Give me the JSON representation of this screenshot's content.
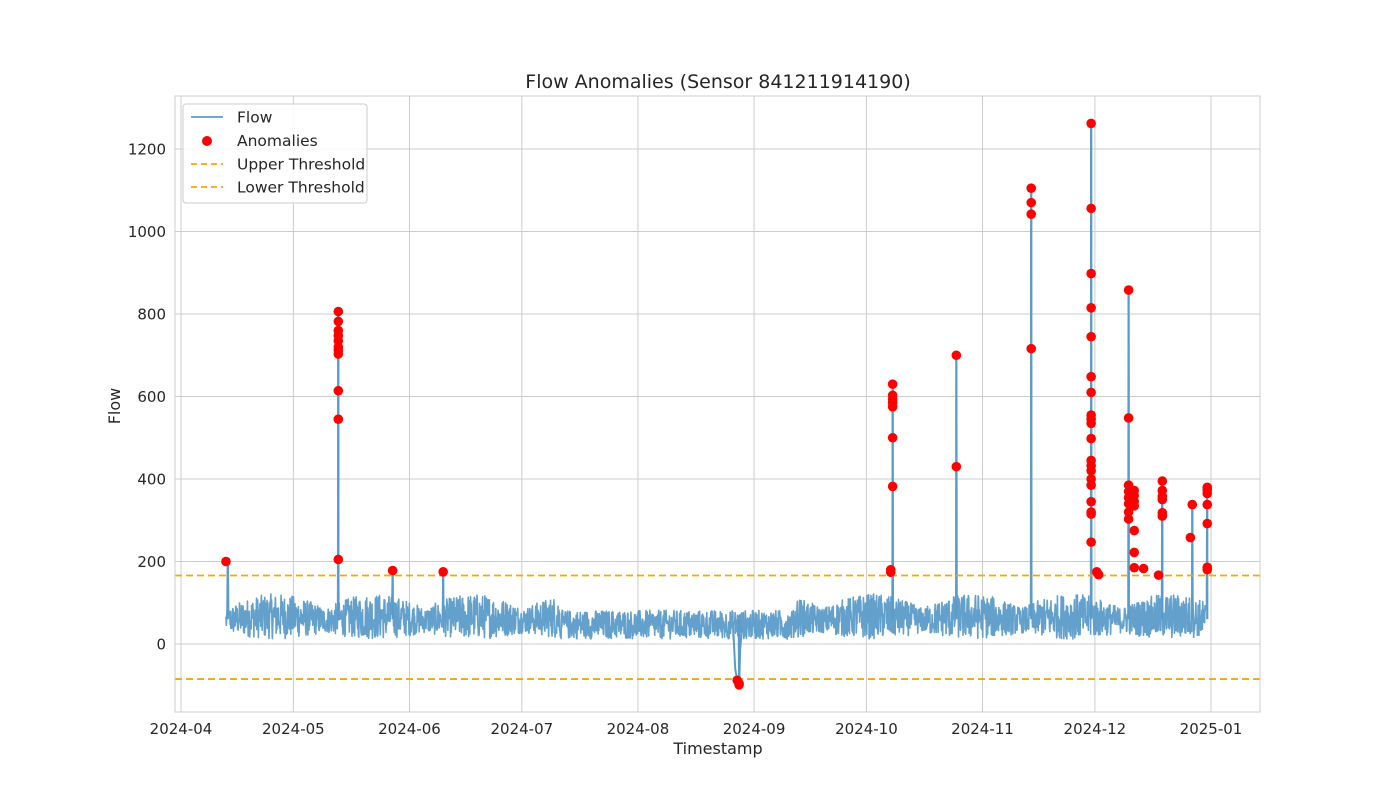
{
  "chart_data": {
    "type": "line",
    "title": "Flow Anomalies (Sensor 841211914190)",
    "xlabel": "Timestamp",
    "ylabel": "Flow",
    "x_range": [
      "2024-04-09T00:00",
      "2025-01-13T00:00"
    ],
    "ylim": [
      -165,
      1320
    ],
    "x_ticks": [
      "2024-04",
      "2024-05",
      "2024-06",
      "2024-07",
      "2024-08",
      "2024-09",
      "2024-10",
      "2024-11",
      "2024-12",
      "2025-01"
    ],
    "x_tick_dates": [
      "2024-04-01",
      "2024-05-01",
      "2024-06-01",
      "2024-07-01",
      "2024-08-01",
      "2024-09-01",
      "2024-10-01",
      "2024-11-01",
      "2024-12-01",
      "2025-01-01"
    ],
    "y_ticks": [
      0,
      200,
      400,
      600,
      800,
      1000,
      1200
    ],
    "grid": true,
    "legend_position": "top-left",
    "legend": [
      "Flow",
      "Anomalies",
      "Upper Threshold",
      "Lower Threshold"
    ],
    "colors": {
      "flow": "#5b9bc9",
      "anomaly": "#ff0000",
      "threshold": "#ffa500",
      "grid": "#cccccc",
      "frame": "#cccccc"
    },
    "series": [
      {
        "name": "Flow",
        "kind": "line",
        "approx_baseline": {
          "start": "2024-04-13",
          "end": "2024-12-31",
          "typical_range": [
            5,
            140
          ]
        },
        "spikes": [
          {
            "x": "2024-04-13T12:00",
            "y": 200
          },
          {
            "x": "2024-05-13T00:00",
            "y": 806
          },
          {
            "x": "2024-05-27T12:00",
            "y": 178
          },
          {
            "x": "2024-06-10T00:00",
            "y": 175
          },
          {
            "x": "2024-08-28T00:00",
            "y": -98
          },
          {
            "x": "2024-10-08T00:00",
            "y": 630
          },
          {
            "x": "2024-10-25T00:00",
            "y": 700
          },
          {
            "x": "2024-11-14T00:00",
            "y": 1105
          },
          {
            "x": "2024-11-30T00:00",
            "y": 1262
          },
          {
            "x": "2024-12-10T00:00",
            "y": 858
          },
          {
            "x": "2024-12-19T00:00",
            "y": 395
          },
          {
            "x": "2024-12-27T00:00",
            "y": 338
          },
          {
            "x": "2024-12-31T00:00",
            "y": 378
          }
        ]
      },
      {
        "name": "Anomalies",
        "kind": "scatter",
        "points": [
          {
            "x": "2024-04-13T00:00",
            "y": 200
          },
          {
            "x": "2024-05-13T00:00",
            "y": 806
          },
          {
            "x": "2024-05-13T00:00",
            "y": 782
          },
          {
            "x": "2024-05-13T00:00",
            "y": 760
          },
          {
            "x": "2024-05-13T00:00",
            "y": 748
          },
          {
            "x": "2024-05-13T00:00",
            "y": 735
          },
          {
            "x": "2024-05-13T00:00",
            "y": 720
          },
          {
            "x": "2024-05-13T00:00",
            "y": 712
          },
          {
            "x": "2024-05-13T00:00",
            "y": 703
          },
          {
            "x": "2024-05-13T00:00",
            "y": 614
          },
          {
            "x": "2024-05-13T00:00",
            "y": 545
          },
          {
            "x": "2024-05-13T00:00",
            "y": 205
          },
          {
            "x": "2024-05-27T12:00",
            "y": 178
          },
          {
            "x": "2024-06-10T00:00",
            "y": 175
          },
          {
            "x": "2024-08-27T12:00",
            "y": -88
          },
          {
            "x": "2024-08-28T00:00",
            "y": -96
          },
          {
            "x": "2024-08-28T00:00",
            "y": -99
          },
          {
            "x": "2024-10-07T12:00",
            "y": 180
          },
          {
            "x": "2024-10-07T12:00",
            "y": 174
          },
          {
            "x": "2024-10-08T00:00",
            "y": 630
          },
          {
            "x": "2024-10-08T00:00",
            "y": 603
          },
          {
            "x": "2024-10-08T00:00",
            "y": 594
          },
          {
            "x": "2024-10-08T00:00",
            "y": 585
          },
          {
            "x": "2024-10-08T00:00",
            "y": 575
          },
          {
            "x": "2024-10-08T00:00",
            "y": 500
          },
          {
            "x": "2024-10-08T00:00",
            "y": 382
          },
          {
            "x": "2024-10-25T00:00",
            "y": 700
          },
          {
            "x": "2024-10-25T00:00",
            "y": 430
          },
          {
            "x": "2024-11-14T00:00",
            "y": 1105
          },
          {
            "x": "2024-11-14T00:00",
            "y": 1070
          },
          {
            "x": "2024-11-14T00:00",
            "y": 1042
          },
          {
            "x": "2024-11-14T00:00",
            "y": 716
          },
          {
            "x": "2024-11-30T00:00",
            "y": 1262
          },
          {
            "x": "2024-11-30T00:00",
            "y": 1056
          },
          {
            "x": "2024-11-30T00:00",
            "y": 898
          },
          {
            "x": "2024-11-30T00:00",
            "y": 815
          },
          {
            "x": "2024-11-30T00:00",
            "y": 745
          },
          {
            "x": "2024-11-30T00:00",
            "y": 648
          },
          {
            "x": "2024-11-30T00:00",
            "y": 610
          },
          {
            "x": "2024-11-30T00:00",
            "y": 555
          },
          {
            "x": "2024-11-30T00:00",
            "y": 545
          },
          {
            "x": "2024-11-30T00:00",
            "y": 535
          },
          {
            "x": "2024-11-30T00:00",
            "y": 498
          },
          {
            "x": "2024-11-30T00:00",
            "y": 445
          },
          {
            "x": "2024-11-30T00:00",
            "y": 432
          },
          {
            "x": "2024-11-30T00:00",
            "y": 420
          },
          {
            "x": "2024-11-30T00:00",
            "y": 400
          },
          {
            "x": "2024-11-30T00:00",
            "y": 385
          },
          {
            "x": "2024-11-30T00:00",
            "y": 345
          },
          {
            "x": "2024-11-30T00:00",
            "y": 320
          },
          {
            "x": "2024-11-30T00:00",
            "y": 315
          },
          {
            "x": "2024-11-30T00:00",
            "y": 247
          },
          {
            "x": "2024-12-01T12:00",
            "y": 175
          },
          {
            "x": "2024-12-02T00:00",
            "y": 168
          },
          {
            "x": "2024-12-10T00:00",
            "y": 858
          },
          {
            "x": "2024-12-10T00:00",
            "y": 548
          },
          {
            "x": "2024-12-10T00:00",
            "y": 385
          },
          {
            "x": "2024-12-10T00:00",
            "y": 370
          },
          {
            "x": "2024-12-10T00:00",
            "y": 355
          },
          {
            "x": "2024-12-10T00:00",
            "y": 340
          },
          {
            "x": "2024-12-10T00:00",
            "y": 320
          },
          {
            "x": "2024-12-10T00:00",
            "y": 303
          },
          {
            "x": "2024-12-11T00:00",
            "y": 365
          },
          {
            "x": "2024-12-11T00:00",
            "y": 345
          },
          {
            "x": "2024-12-11T12:00",
            "y": 372
          },
          {
            "x": "2024-12-11T12:00",
            "y": 360
          },
          {
            "x": "2024-12-11T12:00",
            "y": 346
          },
          {
            "x": "2024-12-11T12:00",
            "y": 335
          },
          {
            "x": "2024-12-11T12:00",
            "y": 275
          },
          {
            "x": "2024-12-11T12:00",
            "y": 222
          },
          {
            "x": "2024-12-11T12:00",
            "y": 185
          },
          {
            "x": "2024-12-14T00:00",
            "y": 183
          },
          {
            "x": "2024-12-18T00:00",
            "y": 167
          },
          {
            "x": "2024-12-19T00:00",
            "y": 395
          },
          {
            "x": "2024-12-19T00:00",
            "y": 372
          },
          {
            "x": "2024-12-19T00:00",
            "y": 358
          },
          {
            "x": "2024-12-19T00:00",
            "y": 350
          },
          {
            "x": "2024-12-19T00:00",
            "y": 318
          },
          {
            "x": "2024-12-19T00:00",
            "y": 310
          },
          {
            "x": "2024-12-26T12:00",
            "y": 258
          },
          {
            "x": "2024-12-27T00:00",
            "y": 338
          },
          {
            "x": "2024-12-31T00:00",
            "y": 380
          },
          {
            "x": "2024-12-31T00:00",
            "y": 373
          },
          {
            "x": "2024-12-31T00:00",
            "y": 365
          },
          {
            "x": "2024-12-31T00:00",
            "y": 338
          },
          {
            "x": "2024-12-31T00:00",
            "y": 292
          },
          {
            "x": "2024-12-31T00:00",
            "y": 186
          },
          {
            "x": "2024-12-31T00:00",
            "y": 180
          }
        ]
      },
      {
        "name": "Upper Threshold",
        "kind": "hline",
        "y": 166
      },
      {
        "name": "Lower Threshold",
        "kind": "hline",
        "y": -85
      }
    ]
  }
}
